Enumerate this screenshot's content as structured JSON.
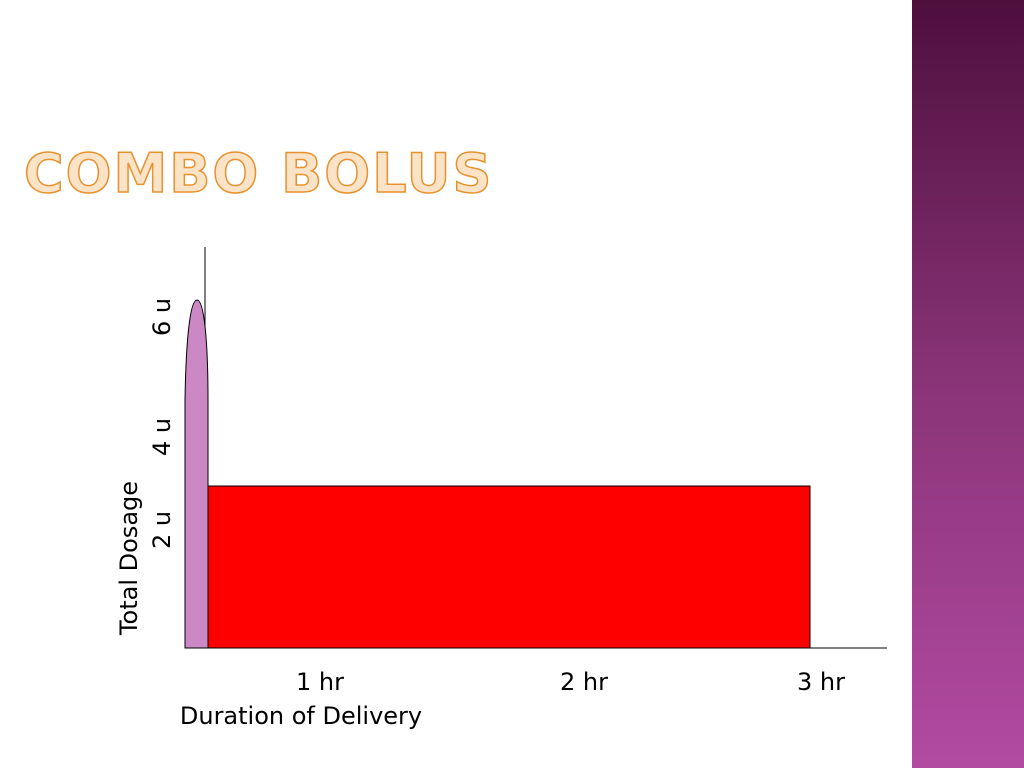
{
  "title": "COMBO BOLUS",
  "diagram": {
    "y_axis_label": "Total Dosage",
    "y_labels": [
      "6 u",
      "4 u",
      "2 u"
    ],
    "x_labels": [
      "1 hr",
      "2 hr",
      "3 hr"
    ],
    "x_axis_label": "Duration of Delivery"
  }
}
